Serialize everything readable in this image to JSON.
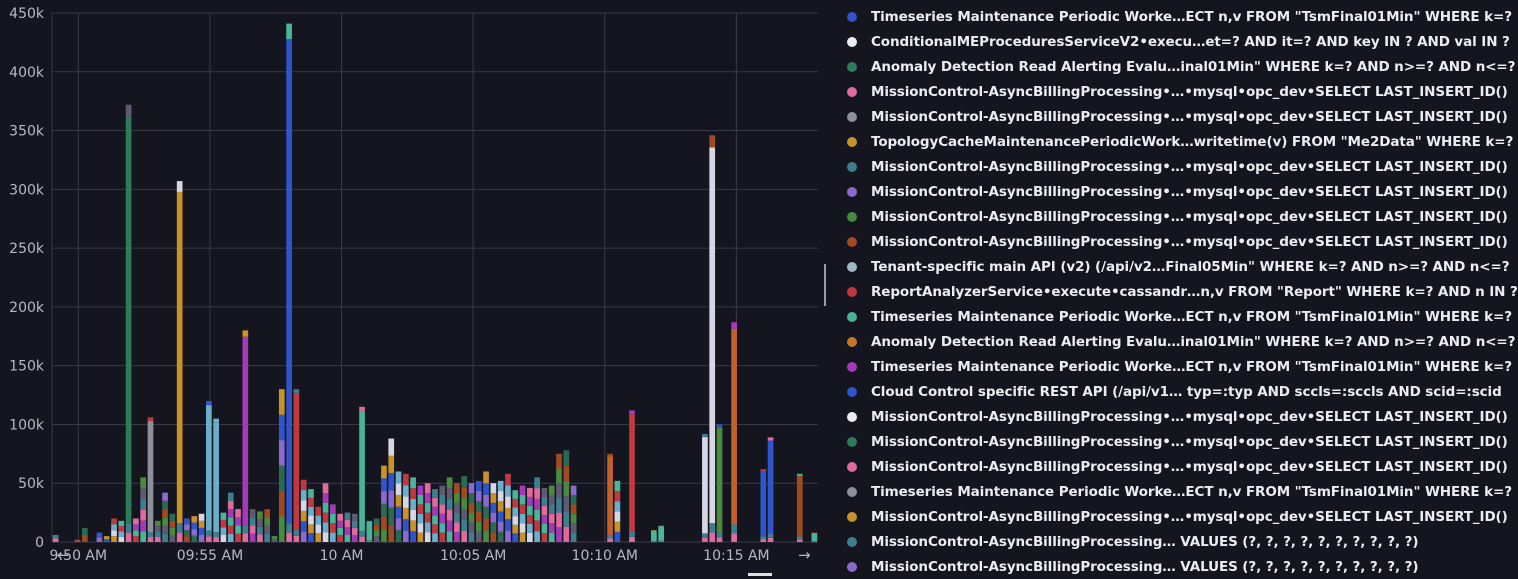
{
  "chart_data": {
    "type": "bar",
    "stacked": true,
    "ylim": [
      0,
      450000
    ],
    "yticks": [
      {
        "value": 0,
        "label": "0"
      },
      {
        "value": 50000,
        "label": "50k"
      },
      {
        "value": 100000,
        "label": "100k"
      },
      {
        "value": 150000,
        "label": "150k"
      },
      {
        "value": 200000,
        "label": "200k"
      },
      {
        "value": 250000,
        "label": "250k"
      },
      {
        "value": 300000,
        "label": "300k"
      },
      {
        "value": 350000,
        "label": "350k"
      },
      {
        "value": 400000,
        "label": "400k"
      },
      {
        "value": 450000,
        "label": "450k"
      }
    ],
    "x_start_minutes": 0,
    "x_end_minutes": 29.1,
    "xticks": [
      {
        "t": 1.0,
        "label": "9:50 AM"
      },
      {
        "t": 6.0,
        "label": "09:55 AM"
      },
      {
        "t": 11.0,
        "label": "10 AM"
      },
      {
        "t": 16.0,
        "label": "10:05 AM"
      },
      {
        "t": 21.0,
        "label": "10:10 AM"
      },
      {
        "t": 26.0,
        "label": "10:15 AM"
      }
    ],
    "bar_heights": [
      6000,
      0,
      0,
      2000,
      12000,
      0,
      8000,
      5000,
      20000,
      18000,
      372000,
      20000,
      55000,
      106000,
      18000,
      42000,
      24000,
      307000,
      20000,
      22000,
      24000,
      120000,
      105000,
      25000,
      42000,
      28000,
      180000,
      28000,
      26000,
      28000,
      5000,
      130000,
      441000,
      130000,
      53000,
      45000,
      30000,
      50000,
      32000,
      24000,
      25000,
      24000,
      115000,
      18000,
      20000,
      65000,
      88000,
      60000,
      58000,
      55000,
      48000,
      50000,
      45000,
      48000,
      55000,
      50000,
      56000,
      50000,
      52000,
      60000,
      50000,
      52000,
      58000,
      44000,
      48000,
      46000,
      55000,
      46000,
      48000,
      75000,
      78000,
      48000,
      0,
      0,
      0,
      0,
      75000,
      52000,
      0,
      112000,
      0,
      0,
      10000,
      14000,
      0,
      0,
      0,
      0,
      0,
      92000,
      346000,
      100000,
      0,
      187000,
      0,
      0,
      0,
      62000,
      89000,
      0,
      0,
      0,
      58000,
      0,
      8000
    ],
    "series_colors": [
      "#e06a9e",
      "#3e7f8f",
      "#5c5c70",
      "#4a8a3e",
      "#a04a22",
      "#2a6a52",
      "#8a6acc",
      "#2f55c8",
      "#c8922a",
      "#d6d6e4",
      "#6aaeca",
      "#c03840",
      "#48b49a",
      "#a43ab8"
    ],
    "overrides": [
      {
        "index": 10,
        "color": "#2f7a58"
      },
      {
        "index": 13,
        "color": "#8f8f9a"
      },
      {
        "index": 17,
        "color": "#c8922a"
      },
      {
        "index": 21,
        "color": "#6aaeca"
      },
      {
        "index": 22,
        "color": "#6aaeca"
      },
      {
        "index": 26,
        "color": "#a43ab8"
      },
      {
        "index": 32,
        "color": "#2f55c8"
      },
      {
        "index": 33,
        "color": "#c03840"
      },
      {
        "index": 42,
        "color": "#48b49a"
      },
      {
        "index": 43,
        "color": "#48b49a"
      },
      {
        "index": 76,
        "color": "#c2622a"
      },
      {
        "index": 79,
        "color": "#c03840"
      },
      {
        "index": 82,
        "color": "#48b49a"
      },
      {
        "index": 83,
        "color": "#48b49a"
      },
      {
        "index": 89,
        "color": "#d6d6e4"
      },
      {
        "index": 90,
        "color": "#d6d6e4"
      },
      {
        "index": 91,
        "color": "#4a8a3e"
      },
      {
        "index": 93,
        "color": "#c2622a"
      },
      {
        "index": 97,
        "color": "#2f55c8"
      },
      {
        "index": 98,
        "color": "#2f55c8"
      },
      {
        "index": 102,
        "color": "#a04a22"
      },
      {
        "index": 104,
        "color": "#48b49a"
      }
    ]
  },
  "legend": [
    {
      "label": "Timeseries Maintenance Periodic Worke…ECT n,v FROM \"TsmFinal01Min\" WHERE k=?",
      "color": "#2f55c8"
    },
    {
      "label": "ConditionalMEProceduresServiceV2•execu…et=? AND it=? AND key IN ? AND val IN ?",
      "color": "#ececf2"
    },
    {
      "label": "Anomaly Detection Read Alerting Evalu…inal01Min\" WHERE k=? AND n>=? AND n<=?",
      "color": "#2f7a58"
    },
    {
      "label": "MissionControl-AsyncBillingProcessing•…•mysql•opc_dev•SELECT LAST_INSERT_ID()",
      "color": "#e06a9e"
    },
    {
      "label": "MissionControl-AsyncBillingProcessing•…•mysql•opc_dev•SELECT LAST_INSERT_ID()",
      "color": "#8f8f9a"
    },
    {
      "label": "TopologyCacheMaintenancePeriodicWork…writetime(v) FROM \"Me2Data\" WHERE k=?",
      "color": "#c8922a"
    },
    {
      "label": "MissionControl-AsyncBillingProcessing•…•mysql•opc_dev•SELECT LAST_INSERT_ID()",
      "color": "#3e7f8f"
    },
    {
      "label": "MissionControl-AsyncBillingProcessing•…•mysql•opc_dev•SELECT LAST_INSERT_ID()",
      "color": "#8a6acc"
    },
    {
      "label": "MissionControl-AsyncBillingProcessing•…•mysql•opc_dev•SELECT LAST_INSERT_ID()",
      "color": "#4a8a3e"
    },
    {
      "label": "MissionControl-AsyncBillingProcessing•…•mysql•opc_dev•SELECT LAST_INSERT_ID()",
      "color": "#a04a22"
    },
    {
      "label": "Tenant-specific main API (v2) (/api/v2…Final05Min\" WHERE k=? AND n>=? AND n<=?",
      "color": "#9ab8c8"
    },
    {
      "label": "ReportAnalyzerService•execute•cassandr…n,v FROM \"Report\" WHERE k=? AND n IN ?",
      "color": "#c03840"
    },
    {
      "label": "Timeseries Maintenance Periodic Worke…ECT n,v FROM \"TsmFinal01Min\" WHERE k=?",
      "color": "#48b49a"
    },
    {
      "label": "Anomaly Detection Read Alerting Evalu…inal01Min\" WHERE k=? AND n>=? AND n<=?",
      "color": "#c2782a"
    },
    {
      "label": "Timeseries Maintenance Periodic Worke…ECT n,v FROM \"TsmFinal01Min\" WHERE k=?",
      "color": "#a43ab8"
    },
    {
      "label": "Cloud Control specific REST API (/api/v1… typ=:typ AND sccls=:sccls AND scid=:scid",
      "color": "#2f55c8"
    },
    {
      "label": "MissionControl-AsyncBillingProcessing•…•mysql•opc_dev•SELECT LAST_INSERT_ID()",
      "color": "#ececf2"
    },
    {
      "label": "MissionControl-AsyncBillingProcessing•…•mysql•opc_dev•SELECT LAST_INSERT_ID()",
      "color": "#2f7a58"
    },
    {
      "label": "MissionControl-AsyncBillingProcessing•…•mysql•opc_dev•SELECT LAST_INSERT_ID()",
      "color": "#e06a9e"
    },
    {
      "label": "Timeseries Maintenance Periodic Worke…ECT n,v FROM \"TsmFinal01Min\" WHERE k=?",
      "color": "#8f8f9a"
    },
    {
      "label": "MissionControl-AsyncBillingProcessing•…•mysql•opc_dev•SELECT LAST_INSERT_ID()",
      "color": "#c8922a"
    },
    {
      "label": "MissionControl-AsyncBillingProcessing… VALUES (?, ?, ?, ?, ?, ?, ?, ?, ?, ?)",
      "color": "#3e7f8f"
    },
    {
      "label": "MissionControl-AsyncBillingProcessing… VALUES (?, ?, ?, ?, ?, ?, ?, ?, ?, ?)",
      "color": "#8a6acc"
    }
  ],
  "nav": {
    "prev_glyph": "←",
    "next_glyph": "→"
  },
  "colors": {
    "background": "#15151f",
    "grid": "#3a3a4a"
  }
}
